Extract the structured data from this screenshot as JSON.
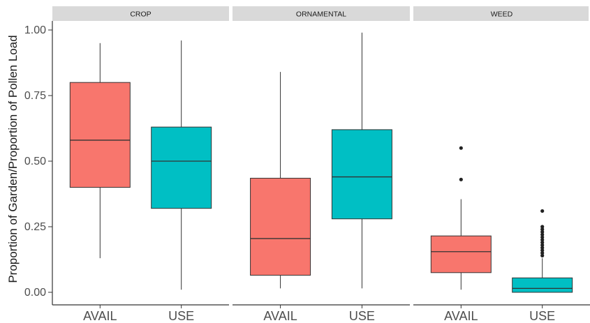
{
  "chart_data": {
    "type": "boxplot",
    "ylabel": "Proportion of Garden/Proportion of Pollen Load",
    "xlabel": "",
    "ylim": [
      0,
      1
    ],
    "y_ticks": [
      "0.00",
      "0.25",
      "0.50",
      "0.75",
      "1.00"
    ],
    "categories": [
      "AVAIL",
      "USE"
    ],
    "legend": "none",
    "grid": false,
    "colors": {
      "AVAIL": "#F8766D",
      "USE": "#00BFC4"
    },
    "facets": [
      {
        "label": "CROP",
        "boxes": [
          {
            "category": "AVAIL",
            "min": 0.13,
            "q1": 0.4,
            "median": 0.58,
            "q3": 0.8,
            "max": 0.95,
            "outliers": []
          },
          {
            "category": "USE",
            "min": 0.01,
            "q1": 0.32,
            "median": 0.5,
            "q3": 0.63,
            "max": 0.96,
            "outliers": []
          }
        ]
      },
      {
        "label": "ORNAMENTAL",
        "boxes": [
          {
            "category": "AVAIL",
            "min": 0.015,
            "q1": 0.065,
            "median": 0.205,
            "q3": 0.435,
            "max": 0.84,
            "outliers": []
          },
          {
            "category": "USE",
            "min": 0.015,
            "q1": 0.28,
            "median": 0.44,
            "q3": 0.62,
            "max": 0.99,
            "outliers": []
          }
        ]
      },
      {
        "label": "WEED",
        "boxes": [
          {
            "category": "AVAIL",
            "min": 0.01,
            "q1": 0.075,
            "median": 0.155,
            "q3": 0.215,
            "max": 0.355,
            "outliers": [
              0.43,
              0.55
            ]
          },
          {
            "category": "USE",
            "min": 0.0,
            "q1": 0.0,
            "median": 0.015,
            "q3": 0.055,
            "max": 0.13,
            "outliers": [
              0.14,
              0.15,
              0.16,
              0.17,
              0.18,
              0.19,
              0.2,
              0.21,
              0.22,
              0.23,
              0.24,
              0.25,
              0.31
            ]
          }
        ]
      }
    ]
  }
}
